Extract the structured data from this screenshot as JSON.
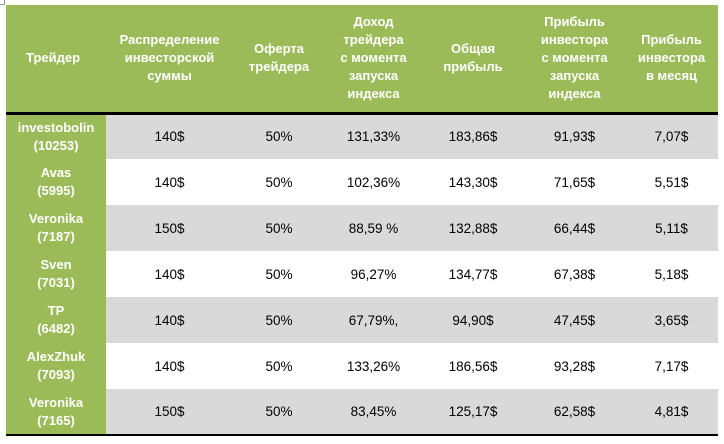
{
  "table": {
    "headers": [
      [
        "Трейдер"
      ],
      [
        "Распределение",
        "инвесторской",
        "суммы"
      ],
      [
        "Оферта",
        "трейдера"
      ],
      [
        "Доход",
        "трейдера",
        "с момента",
        "запуска",
        "индекса"
      ],
      [
        "Общая",
        "прибыль"
      ],
      [
        "Прибыль",
        "инвестора",
        "с момента",
        "запуска",
        "индекса"
      ],
      [
        "Прибыль",
        "инвестора",
        "в месяц"
      ]
    ],
    "rows": [
      {
        "name": "investobolin",
        "id": "(10253)",
        "cells": [
          "140$",
          "50%",
          "131,33%",
          "183,86$",
          "91,93$",
          "7,07$"
        ]
      },
      {
        "name": "Avas",
        "id": "(5995)",
        "cells": [
          "140$",
          "50%",
          "102,36%",
          "143,30$",
          "71,65$",
          "5,51$"
        ]
      },
      {
        "name": "Veronika",
        "id": "(7187)",
        "cells": [
          "150$",
          "50%",
          "88,59 %",
          "132,88$",
          "66,44$",
          "5,11$"
        ]
      },
      {
        "name": "Sven",
        "id": "(7031)",
        "cells": [
          "140$",
          "50%",
          "96,27%",
          "134,77$",
          "67,38$",
          "5,18$"
        ]
      },
      {
        "name": "TP",
        "id": "(6482)",
        "cells": [
          "140$",
          "50%",
          "67,79%,",
          "94,90$",
          "47,45$",
          "3,65$"
        ]
      },
      {
        "name": "AlexZhuk",
        "id": "(7093)",
        "cells": [
          "140$",
          "50%",
          "133,26%",
          "186,56$",
          "93,28$",
          "7,17$"
        ]
      },
      {
        "name": "Veronika",
        "id": "(7165)",
        "cells": [
          "150$",
          "50%",
          "83,45%",
          "125,17$",
          "62,58$",
          "4,81$"
        ]
      }
    ]
  },
  "colors": {
    "header_green": "#9bbb59",
    "row_shade": "#d9d9d9",
    "rule": "#000000"
  }
}
